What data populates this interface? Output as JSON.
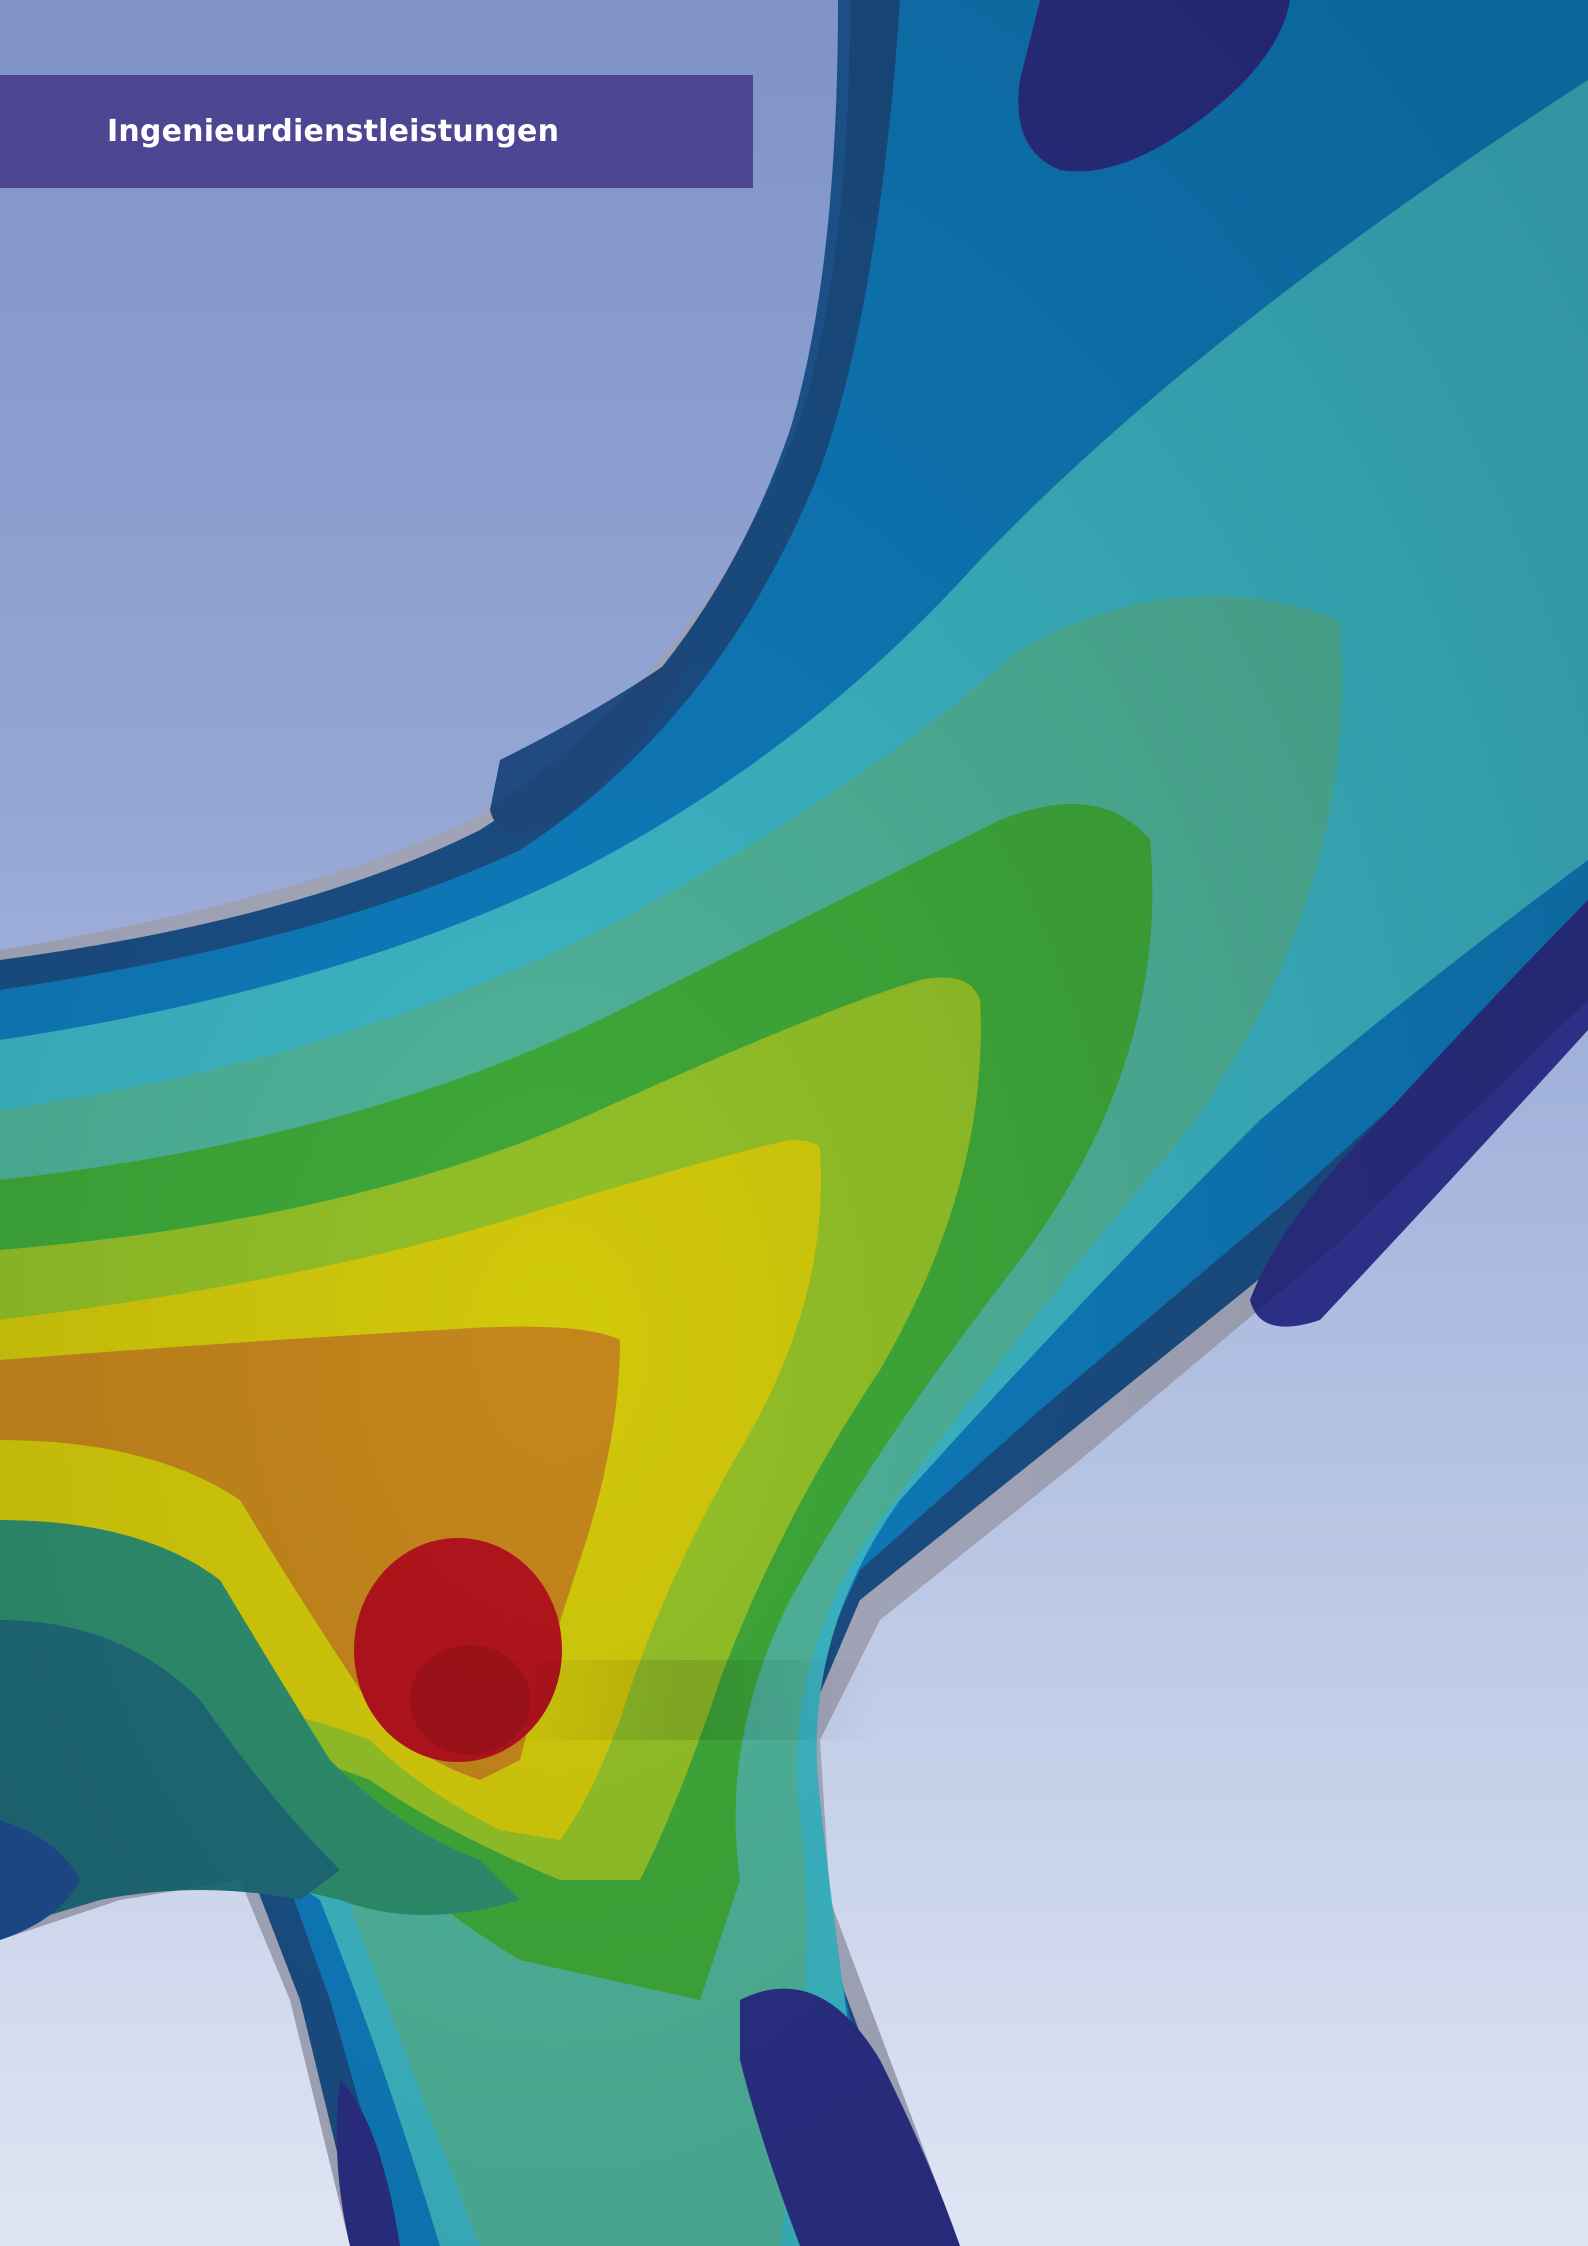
{
  "document": {
    "banner_title": "Ingenieurdienstleistungen"
  },
  "artwork": {
    "subject": "finite element stress contour plot",
    "contour_colors": [
      "#2b2f86",
      "#1f4d8f",
      "#0e78b8",
      "#38b6c9",
      "#4fb79a",
      "#3faa3a",
      "#8fc02a",
      "#d1c90a",
      "#c7881a",
      "#b2141c"
    ],
    "background_colors": [
      "#7f93c8",
      "#b5c3e3",
      "#dfe5f3"
    ],
    "banner_color": "#4f4693"
  }
}
